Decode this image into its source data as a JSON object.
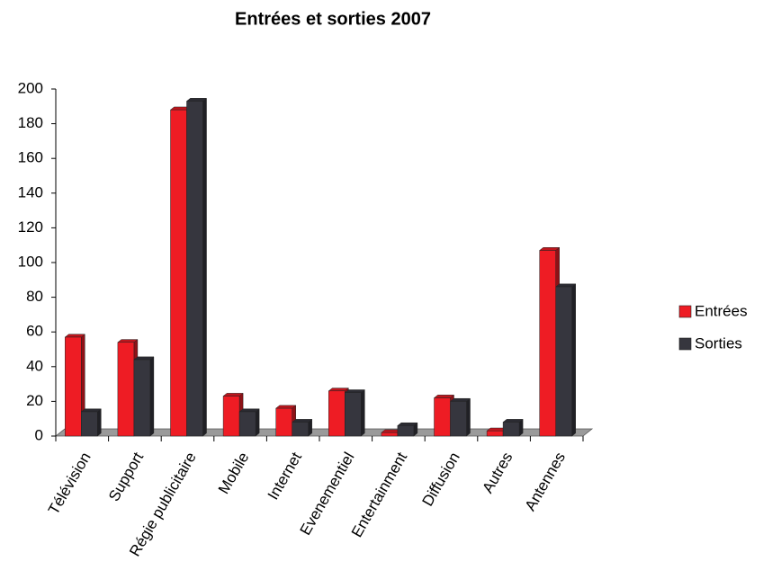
{
  "chart_data": {
    "type": "bar3d",
    "title": "Entrées et sorties 2007",
    "categories": [
      "Télévision",
      "Support",
      "Régie publicitaire",
      "Mobile",
      "Internet",
      "Evenementiel",
      "Entertainment",
      "Diffusion",
      "Autres",
      "Antennes"
    ],
    "series": [
      {
        "name": "Entrées",
        "color": "#ee1c24",
        "values": [
          57,
          54,
          188,
          23,
          16,
          26,
          2,
          22,
          3,
          107
        ]
      },
      {
        "name": "Sorties",
        "color": "#36363e",
        "values": [
          14,
          44,
          193,
          14,
          8,
          25,
          6,
          20,
          8,
          86
        ]
      }
    ],
    "ylim": [
      0,
      200
    ],
    "yticks": [
      0,
      20,
      40,
      60,
      80,
      100,
      120,
      140,
      160,
      180,
      200
    ],
    "legend": "right"
  }
}
